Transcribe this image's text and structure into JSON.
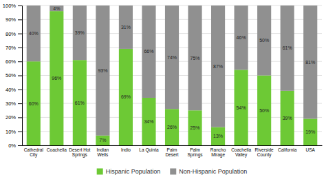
{
  "chart_data": {
    "type": "bar",
    "stacked": true,
    "data_labels": true,
    "grid": true,
    "legend": "bottom",
    "categories": [
      "Cathedral\nCity",
      "Coachella",
      "Desert Hot\nSprings",
      "Indian\nWells",
      "Indio",
      "La Quinta",
      "Palm\nDesert",
      "Palm\nSprings",
      "Rancho\nMirage",
      "Coachella\nValley",
      "Riverside\nCounty",
      "California",
      "USA"
    ],
    "series": [
      {
        "name": "Hispanic Population",
        "color": "#6dc935",
        "values": [
          60,
          96,
          61,
          7,
          69,
          34,
          26,
          25,
          13,
          54,
          50,
          39,
          19
        ],
        "value_labels": [
          "60%",
          "96%",
          "61%",
          "7%",
          "69%",
          "34%",
          "26%",
          "25%",
          "13%",
          "54%",
          "50%",
          "39%",
          "19%"
        ]
      },
      {
        "name": "Non-Hispanic Population",
        "color": "#909090",
        "values": [
          40,
          4,
          39,
          93,
          31,
          66,
          74,
          75,
          87,
          46,
          50,
          61,
          81
        ],
        "value_labels": [
          "40%",
          "4%",
          "39%",
          "93%",
          "31%",
          "66%",
          "74%",
          "75%",
          "87%",
          "46%",
          "50%",
          "61%",
          "81%"
        ]
      }
    ],
    "ylim": [
      0,
      100
    ],
    "yticks": [
      {
        "value": 0,
        "label": "0%"
      },
      {
        "value": 10,
        "label": "10%"
      },
      {
        "value": 20,
        "label": "20%"
      },
      {
        "value": 30,
        "label": "30%"
      },
      {
        "value": 40,
        "label": "40%"
      },
      {
        "value": 50,
        "label": "50%"
      },
      {
        "value": 60,
        "label": "60%"
      },
      {
        "value": 70,
        "label": "70%"
      },
      {
        "value": 80,
        "label": "80%"
      },
      {
        "value": 90,
        "label": "90%"
      },
      {
        "value": 100,
        "label": "100%"
      }
    ]
  }
}
